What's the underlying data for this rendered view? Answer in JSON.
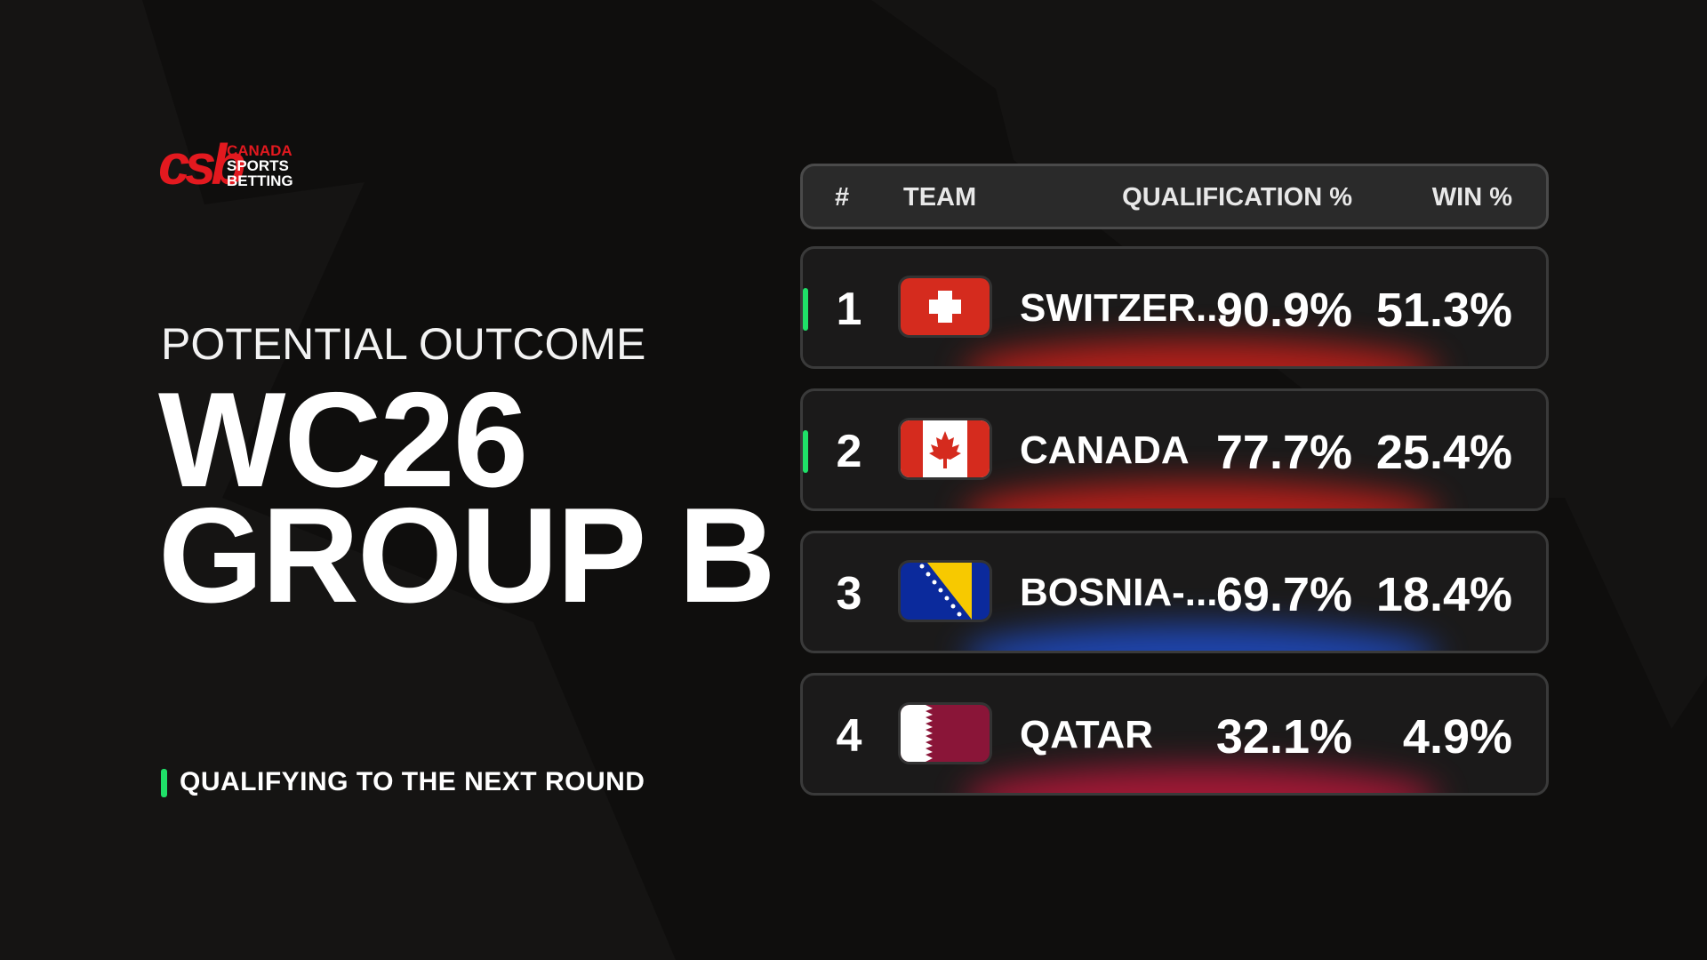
{
  "logo": {
    "mark": "csb",
    "lines": [
      "CANADA",
      "SPORTS",
      "BETTING"
    ]
  },
  "subtitle": "POTENTIAL OUTCOME",
  "title": [
    "WC26",
    "GROUP B"
  ],
  "legend": "QUALIFYING TO THE NEXT ROUND",
  "table": {
    "header": [
      "#",
      "TEAM",
      "QUALIFICATION %",
      "WIN %"
    ],
    "rows": [
      {
        "rank": "1",
        "team": "SWITZER...",
        "qualification": "90.9%",
        "win": "51.3%",
        "qualifying": true,
        "glow": "#d4201a"
      },
      {
        "rank": "2",
        "team": "CANADA",
        "qualification": "77.7%",
        "win": "25.4%",
        "qualifying": true,
        "glow": "#d4201a"
      },
      {
        "rank": "3",
        "team": "BOSNIA-...",
        "qualification": "69.7%",
        "win": "18.4%",
        "qualifying": false,
        "glow": "#1f4fd0"
      },
      {
        "rank": "4",
        "team": "QATAR",
        "qualification": "32.1%",
        "win": "4.9%",
        "qualifying": false,
        "glow": "#c2183c"
      }
    ]
  }
}
